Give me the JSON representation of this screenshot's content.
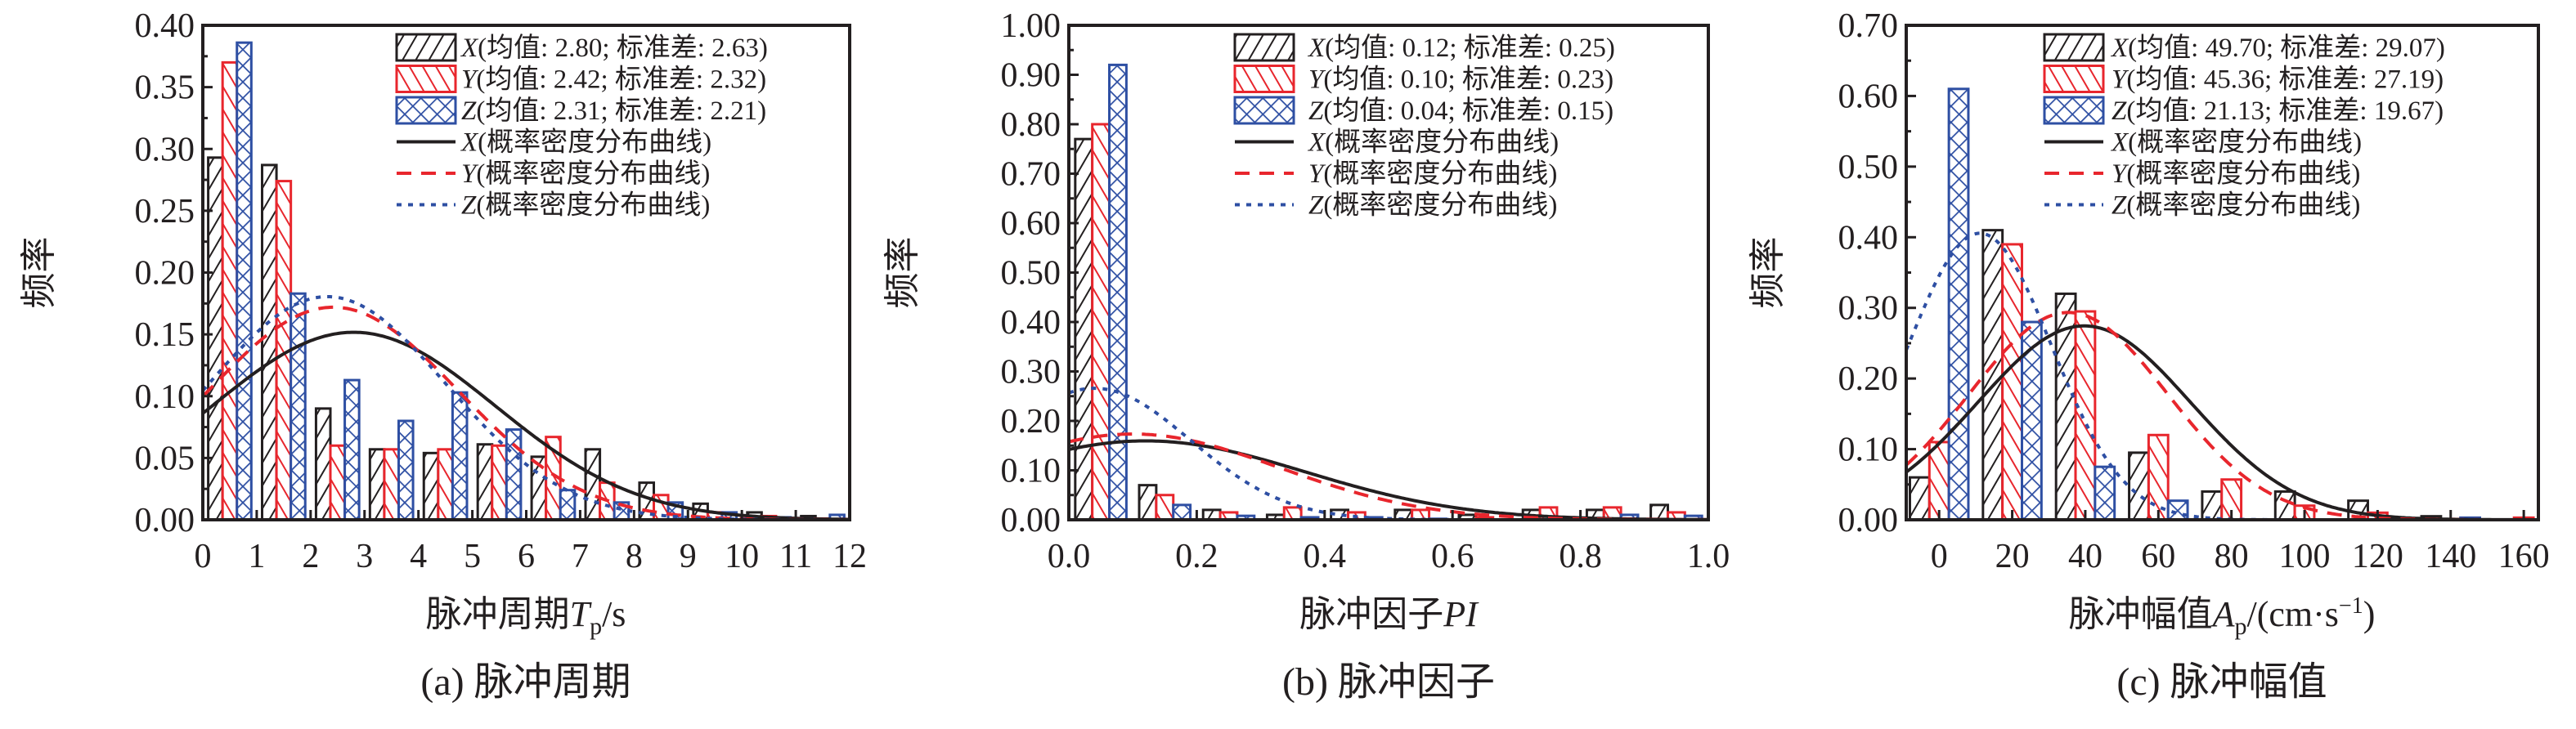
{
  "chart_data": [
    {
      "type": "bar",
      "caption": "(a) 脉冲周期",
      "ylabel": "频率",
      "xlabel": {
        "prefix": "脉冲周期",
        "var": "T",
        "sub": "p",
        "suffix": "/s",
        "sup": "",
        "end": ""
      },
      "xlim": [
        0,
        12
      ],
      "ylim": [
        0,
        0.4
      ],
      "xticks": [
        "0",
        "1",
        "2",
        "3",
        "4",
        "5",
        "6",
        "7",
        "8",
        "9",
        "10",
        "11",
        "12"
      ],
      "yticks": [
        "0.00",
        "0.05",
        "0.10",
        "0.15",
        "0.20",
        "0.25",
        "0.30",
        "0.35",
        "0.40"
      ],
      "bin_width": 1,
      "bins": [
        0.5,
        1.5,
        2.5,
        3.5,
        4.5,
        5.5,
        6.5,
        7.5,
        8.5,
        9.5,
        10.5,
        11.5
      ],
      "series": [
        {
          "name": "X",
          "legend": "(均值: 2.80; 标准差: 2.63)",
          "mean": 2.8,
          "std": 2.63,
          "color": "#231f20",
          "pattern": "forward-hatch",
          "values": [
            0.293,
            0.287,
            0.09,
            0.057,
            0.054,
            0.061,
            0.051,
            0.057,
            0.03,
            0.013,
            0.006,
            0.003
          ]
        },
        {
          "name": "Y",
          "legend": "(均值: 2.42; 标准差: 2.32)",
          "mean": 2.42,
          "std": 2.32,
          "color": "#e8262d",
          "pattern": "back-hatch",
          "values": [
            0.37,
            0.274,
            0.06,
            0.057,
            0.057,
            0.06,
            0.067,
            0.03,
            0.02,
            0.006,
            0.003,
            0.001
          ]
        },
        {
          "name": "Z",
          "legend": "(均值: 2.31; 标准差: 2.21)",
          "mean": 2.31,
          "std": 2.21,
          "color": "#2e4fa3",
          "pattern": "cross-hatch",
          "values": [
            0.386,
            0.183,
            0.113,
            0.08,
            0.103,
            0.073,
            0.024,
            0.014,
            0.014,
            0.006,
            0.002,
            0.004
          ]
        }
      ],
      "curves": [
        {
          "name": "X",
          "legend": "(概率密度分布曲线)",
          "style": "solid",
          "color": "#231f20"
        },
        {
          "name": "Y",
          "legend": "(概率密度分布曲线)",
          "style": "dashed",
          "color": "#e8262d"
        },
        {
          "name": "Z",
          "legend": "(概率密度分布曲线)",
          "style": "dotted",
          "color": "#2e4fa3"
        }
      ],
      "legend_position": "top-right"
    },
    {
      "type": "bar",
      "caption": "(b) 脉冲因子",
      "ylabel": "频率",
      "xlabel": {
        "prefix": "脉冲因子",
        "var": "PI",
        "sub": "",
        "suffix": "",
        "sup": "",
        "end": ""
      },
      "xlim": [
        0,
        1
      ],
      "ylim": [
        0,
        1.0
      ],
      "xticks": [
        "0.0",
        "0.2",
        "0.4",
        "0.6",
        "0.8",
        "1.0"
      ],
      "yticks": [
        "0.00",
        "0.10",
        "0.20",
        "0.30",
        "0.40",
        "0.50",
        "0.60",
        "0.70",
        "0.80",
        "0.90",
        "1.00"
      ],
      "bin_width": 0.1,
      "bins": [
        0.05,
        0.15,
        0.25,
        0.35,
        0.45,
        0.55,
        0.65,
        0.75,
        0.85,
        0.95
      ],
      "series": [
        {
          "name": "X",
          "legend": "(均值: 0.12; 标准差: 0.25)",
          "mean": 0.12,
          "std": 0.25,
          "color": "#231f20",
          "pattern": "forward-hatch",
          "values": [
            0.77,
            0.07,
            0.02,
            0.01,
            0.02,
            0.02,
            0.01,
            0.02,
            0.02,
            0.03
          ]
        },
        {
          "name": "Y",
          "legend": "(均值: 0.10; 标准差: 0.23)",
          "mean": 0.1,
          "std": 0.23,
          "color": "#e8262d",
          "pattern": "back-hatch",
          "values": [
            0.8,
            0.05,
            0.015,
            0.025,
            0.015,
            0.02,
            0.005,
            0.025,
            0.025,
            0.015
          ]
        },
        {
          "name": "Z",
          "legend": "(均值: 0.04; 标准差: 0.15)",
          "mean": 0.04,
          "std": 0.15,
          "color": "#2e4fa3",
          "pattern": "cross-hatch",
          "values": [
            0.92,
            0.03,
            0.008,
            0.005,
            0.005,
            0.002,
            0.0,
            0.005,
            0.01,
            0.008
          ]
        }
      ],
      "curves": [
        {
          "name": "X",
          "legend": "(概率密度分布曲线)",
          "style": "solid",
          "color": "#231f20"
        },
        {
          "name": "Y",
          "legend": "(概率密度分布曲线)",
          "style": "dashed",
          "color": "#e8262d"
        },
        {
          "name": "Z",
          "legend": "(概率密度分布曲线)",
          "style": "dotted",
          "color": "#2e4fa3"
        }
      ],
      "legend_position": "top-right"
    },
    {
      "type": "bar",
      "caption": "(c) 脉冲幅值",
      "ylabel": "频率",
      "xlabel": {
        "prefix": "脉冲幅值",
        "var": "A",
        "sub": "p",
        "suffix": "/(cm·s",
        "sup": "−1",
        "end": ")"
      },
      "xlim": [
        -9,
        164
      ],
      "ylim": [
        0,
        0.7
      ],
      "xticks": [
        "0",
        "20",
        "40",
        "60",
        "80",
        "100",
        "120",
        "140",
        "160"
      ],
      "yticks": [
        "0.00",
        "0.10",
        "0.20",
        "0.30",
        "0.40",
        "0.50",
        "0.60",
        "0.70"
      ],
      "bin_width": 20,
      "bins": [
        0,
        20,
        40,
        60,
        80,
        100,
        120,
        140,
        160
      ],
      "series": [
        {
          "name": "X",
          "legend": "(均值: 49.70; 标准差: 29.07)",
          "mean": 49.7,
          "std": 29.07,
          "color": "#231f20",
          "pattern": "forward-hatch",
          "values": [
            0.06,
            0.41,
            0.32,
            0.095,
            0.04,
            0.04,
            0.027,
            0.005,
            0.0
          ]
        },
        {
          "name": "Y",
          "legend": "(均值: 45.36; 标准差: 27.19)",
          "mean": 45.36,
          "std": 27.19,
          "color": "#e8262d",
          "pattern": "back-hatch",
          "values": [
            0.11,
            0.39,
            0.295,
            0.12,
            0.057,
            0.02,
            0.01,
            0.0,
            0.003
          ]
        },
        {
          "name": "Z",
          "legend": "(均值: 21.13; 标准差: 19.67)",
          "mean": 21.13,
          "std": 19.67,
          "color": "#2e4fa3",
          "pattern": "cross-hatch",
          "values": [
            0.61,
            0.28,
            0.075,
            0.027,
            0.0,
            0.0,
            0.0,
            0.003,
            0.0
          ]
        }
      ],
      "curves": [
        {
          "name": "X",
          "legend": "(概率密度分布曲线)",
          "style": "solid",
          "color": "#231f20"
        },
        {
          "name": "Y",
          "legend": "(概率密度分布曲线)",
          "style": "dashed",
          "color": "#e8262d"
        },
        {
          "name": "Z",
          "legend": "(概率密度分布曲线)",
          "style": "dotted",
          "color": "#2e4fa3"
        }
      ],
      "legend_position": "top-right"
    }
  ]
}
